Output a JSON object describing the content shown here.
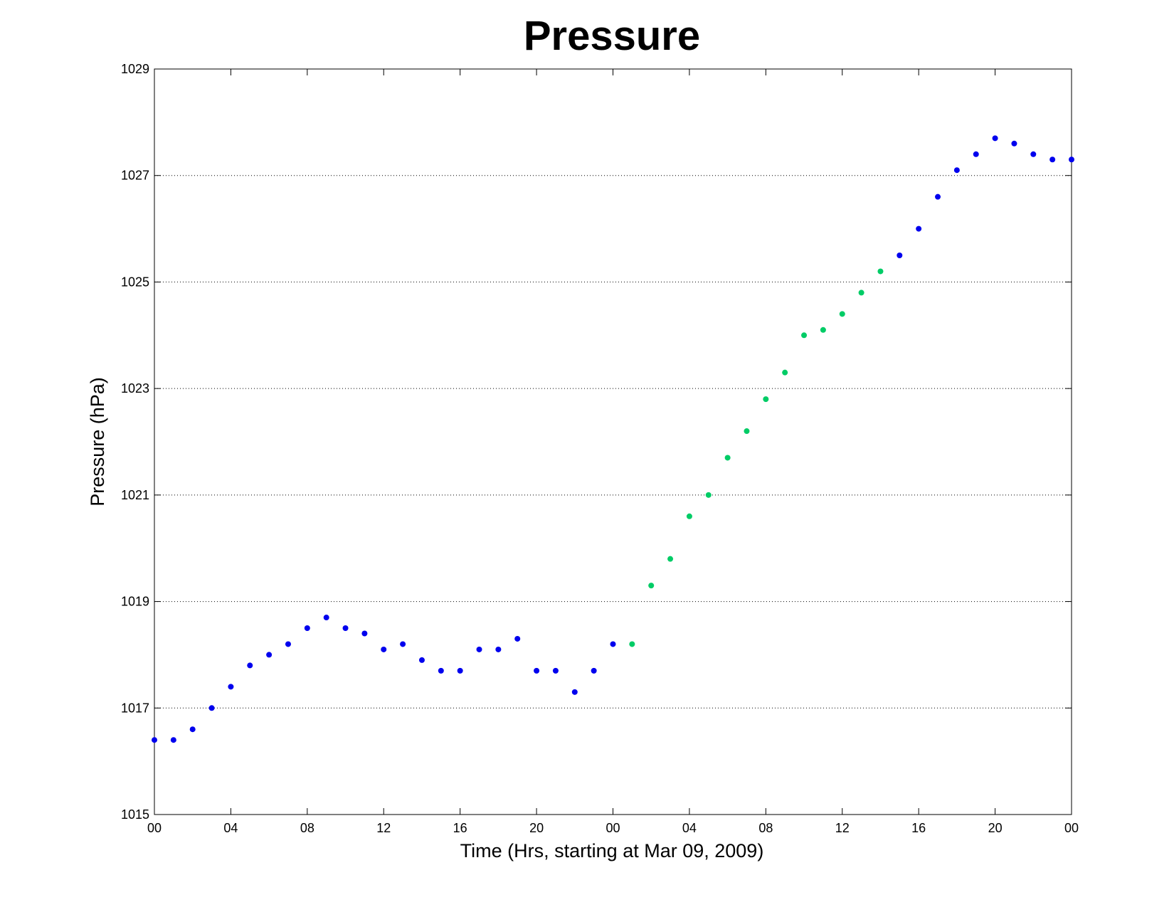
{
  "chart_data": {
    "type": "scatter",
    "title": "Pressure",
    "xlabel": "Time (Hrs, starting at Mar 09, 2009)",
    "ylabel": "Pressure (hPa)",
    "xlim": [
      0,
      48
    ],
    "ylim": [
      1015,
      1029
    ],
    "x_ticks": [
      {
        "x": 0,
        "label": "00"
      },
      {
        "x": 4,
        "label": "04"
      },
      {
        "x": 8,
        "label": "08"
      },
      {
        "x": 12,
        "label": "12"
      },
      {
        "x": 16,
        "label": "16"
      },
      {
        "x": 20,
        "label": "20"
      },
      {
        "x": 24,
        "label": "00"
      },
      {
        "x": 28,
        "label": "04"
      },
      {
        "x": 32,
        "label": "08"
      },
      {
        "x": 36,
        "label": "12"
      },
      {
        "x": 40,
        "label": "16"
      },
      {
        "x": 44,
        "label": "20"
      },
      {
        "x": 48,
        "label": "00"
      }
    ],
    "y_ticks": [
      1015,
      1017,
      1019,
      1021,
      1023,
      1025,
      1027,
      1029
    ],
    "y_grid": [
      1017,
      1019,
      1021,
      1023,
      1025,
      1027
    ],
    "grid": true,
    "series": [
      {
        "color": "#0000ee",
        "x": [
          0,
          1,
          2,
          3,
          4,
          5,
          6,
          7,
          8,
          9,
          10,
          11,
          12,
          13,
          14,
          15,
          16,
          17,
          18,
          19,
          20,
          21,
          22,
          23,
          24,
          39,
          40,
          41,
          42,
          43,
          44,
          45,
          46,
          47,
          48
        ],
        "y": [
          1016.4,
          1016.4,
          1016.6,
          1017.0,
          1017.4,
          1017.8,
          1018.0,
          1018.2,
          1018.5,
          1018.7,
          1018.5,
          1018.4,
          1018.1,
          1018.2,
          1017.9,
          1017.7,
          1017.7,
          1018.1,
          1018.1,
          1018.3,
          1017.7,
          1017.7,
          1017.3,
          1017.7,
          1018.2,
          1025.5,
          1026.0,
          1026.6,
          1027.1,
          1027.4,
          1027.7,
          1027.6,
          1027.4,
          1027.3,
          1027.3
        ]
      },
      {
        "color": "#00cc66",
        "x": [
          25,
          26,
          27,
          28,
          29,
          30,
          31,
          32,
          33,
          34,
          35,
          36,
          37,
          38
        ],
        "y": [
          1018.2,
          1019.3,
          1019.8,
          1020.6,
          1021.0,
          1021.7,
          1022.2,
          1022.8,
          1023.3,
          1024.0,
          1024.1,
          1024.4,
          1024.8,
          1025.2
        ]
      }
    ]
  }
}
